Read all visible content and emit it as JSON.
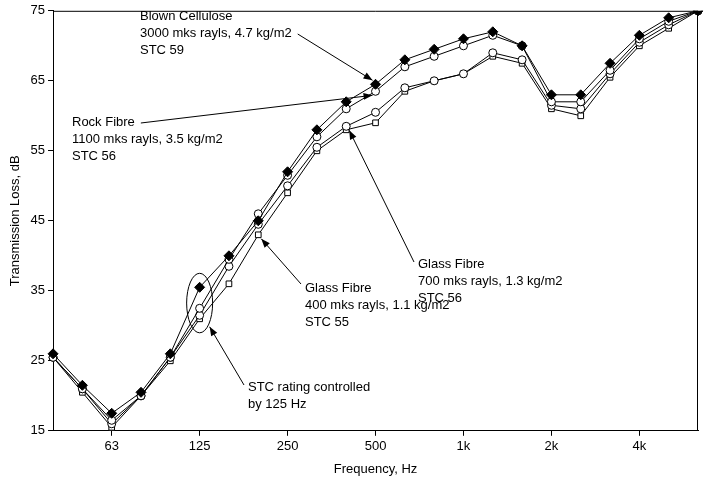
{
  "chart_data": {
    "type": "line",
    "x_label": "Frequency, Hz",
    "y_label": "Transmission Loss, dB",
    "categories": [
      null,
      null,
      "63",
      null,
      null,
      "125",
      null,
      null,
      "250",
      null,
      null,
      "500",
      null,
      null,
      "1k",
      null,
      null,
      "2k",
      null,
      null,
      "4k",
      null,
      null
    ],
    "ylim": [
      15,
      75
    ],
    "yticks": [
      15,
      25,
      35,
      45,
      55,
      65,
      75
    ],
    "grid": false,
    "series": [
      {
        "name": "Blown Cellulose",
        "annotation": [
          "3000 mks rayls, 4.7 kg/m2",
          "STC 59"
        ],
        "color": "#000000",
        "marker": "diamond",
        "line_style": "solid",
        "values": [
          26,
          21.5,
          17.5,
          20.5,
          26,
          35.5,
          40,
          45,
          52,
          58,
          62,
          64.5,
          68,
          69.5,
          71,
          72,
          70,
          63,
          63,
          67.5,
          71.5,
          74,
          75
        ]
      },
      {
        "name": "Rock Fibre",
        "annotation": [
          "1100 mks rayls, 3.5 kg/m2",
          "STC 56"
        ],
        "color": "#000000",
        "marker": "circle",
        "line_style": "solid",
        "values": [
          25.5,
          21,
          16.5,
          20,
          25.5,
          32.5,
          39.5,
          46,
          51.5,
          57,
          61,
          63.5,
          67,
          68.5,
          70,
          71.5,
          70,
          62,
          62,
          66.5,
          71,
          73.5,
          75
        ]
      },
      {
        "name": "Glass Fibre",
        "annotation": [
          "700 mks rayls, 1.3 kg/m2",
          "STC 56"
        ],
        "color": "#000000",
        "marker": "circle",
        "line_style": "solid",
        "values": [
          25.5,
          21,
          16,
          20,
          25.5,
          31.5,
          38.5,
          44.5,
          50,
          55.5,
          58.5,
          60.5,
          64,
          65,
          66,
          69,
          68,
          61.5,
          61,
          66,
          70.5,
          73,
          75
        ]
      },
      {
        "name": "Glass Fibre",
        "annotation": [
          "400 mks rayls, 1.1 kg/m2",
          "STC 55"
        ],
        "color": "#000000",
        "marker": "square",
        "line_style": "solid",
        "values": [
          25.5,
          20.5,
          15.5,
          20,
          25,
          31,
          36,
          43,
          49,
          55,
          58,
          59,
          63.5,
          65,
          66,
          68.5,
          67.5,
          61,
          60,
          65.5,
          70,
          72.5,
          75
        ]
      }
    ],
    "annotations": [
      "STC rating controlled",
      "by 125 Hz"
    ]
  }
}
